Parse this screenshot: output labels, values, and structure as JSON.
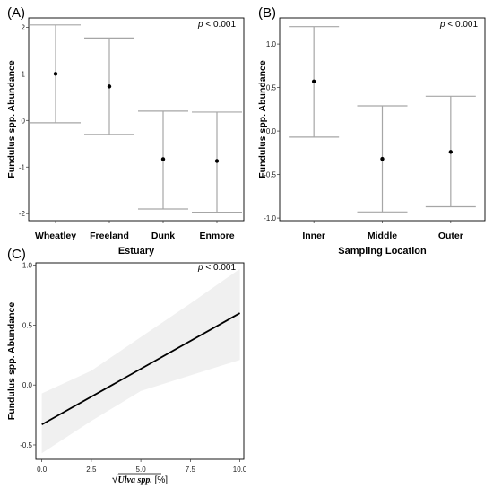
{
  "chart_data": [
    {
      "panel_label": "(A)",
      "type": "scatter",
      "subtype": "point-with-error-bars",
      "categories": [
        "Wheatley",
        "Freeland",
        "Dunk",
        "Enmore"
      ],
      "values": [
        1.0,
        0.73,
        -0.83,
        -0.87
      ],
      "lower": [
        -0.05,
        -0.3,
        -1.9,
        -1.97
      ],
      "upper": [
        2.05,
        1.77,
        0.2,
        0.18
      ],
      "xlabel": "Estuary",
      "ylabel": "Fundulus spp. Abundance",
      "ylim": [
        -2.15,
        2.2
      ],
      "yticks": [
        "-2",
        "-1",
        "0",
        "1",
        "2"
      ],
      "annotation": {
        "p_letter": "p",
        "p_rest": " < 0.001"
      },
      "grid": false
    },
    {
      "panel_label": "(B)",
      "type": "scatter",
      "subtype": "point-with-error-bars",
      "categories": [
        "Inner",
        "Middle",
        "Outer"
      ],
      "values": [
        0.57,
        -0.32,
        -0.24
      ],
      "lower": [
        -0.07,
        -0.93,
        -0.87
      ],
      "upper": [
        1.2,
        0.29,
        0.4
      ],
      "xlabel": "Sampling Location",
      "ylabel": "Fundulus spp. Abundance",
      "ylim": [
        -1.03,
        1.3
      ],
      "yticks": [
        "-1.0",
        "-0.5",
        "0.0",
        "0.5",
        "1.0"
      ],
      "annotation": {
        "p_letter": "p",
        "p_rest": " < 0.001"
      },
      "grid": false
    },
    {
      "panel_label": "(C)",
      "type": "line",
      "subtype": "regression-with-confidence-band",
      "x": [
        0,
        10
      ],
      "y": [
        -0.33,
        0.6
      ],
      "band_x": [
        0,
        2.5,
        5,
        7.5,
        10
      ],
      "band_lower": [
        -0.57,
        -0.3,
        -0.05,
        0.08,
        0.21
      ],
      "band_upper": [
        -0.07,
        0.12,
        0.4,
        0.68,
        0.97
      ],
      "xlabel": {
        "radical": "√",
        "term": "Ulva spp.",
        "unit": " [%]"
      },
      "ylabel": "Fundulus spp. Abundance",
      "xlim": [
        -0.3,
        10.2
      ],
      "ylim": [
        -0.62,
        1.02
      ],
      "xticks": [
        "0.0",
        "2.5",
        "5.0",
        "7.5",
        "10.0"
      ],
      "yticks": [
        "-0.5",
        "0.0",
        "0.5",
        "1.0"
      ],
      "annotation": {
        "p_letter": "p",
        "p_rest": " < 0.001"
      },
      "grid": false
    }
  ],
  "colors": {
    "errorbar": "#a6a6a6",
    "point": "#000000",
    "line": "#000000",
    "band": "#f0f0f0",
    "frame": "#000000"
  }
}
